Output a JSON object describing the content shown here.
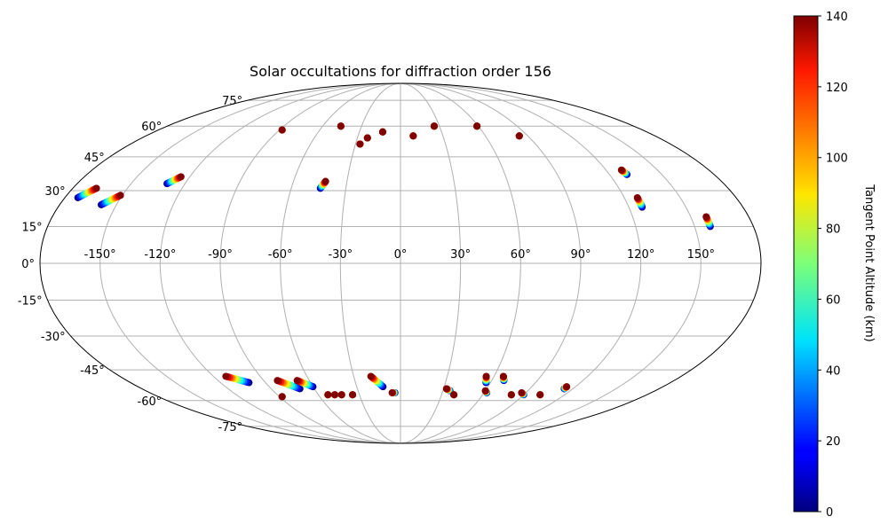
{
  "chart_data": {
    "type": "scatter",
    "projection": "mollweide",
    "title": "Solar occultations for diffraction order 156",
    "grid": true,
    "lon_ticks": [
      "-150°",
      "-120°",
      "-90°",
      "-60°",
      "-30°",
      "0°",
      "30°",
      "60°",
      "90°",
      "120°",
      "150°"
    ],
    "lon_tick_values": [
      -150,
      -120,
      -90,
      -60,
      -30,
      0,
      30,
      60,
      90,
      120,
      150
    ],
    "lat_ticks": [
      "75°",
      "60°",
      "45°",
      "30°",
      "15°",
      "0°",
      "-15°",
      "-30°",
      "-45°",
      "-60°",
      "-75°"
    ],
    "lat_tick_values": [
      75,
      60,
      45,
      30,
      15,
      0,
      -15,
      -30,
      -45,
      -60,
      -75
    ],
    "colorbar": {
      "label": "Tangent Point Altitude (km)",
      "colormap": "jet",
      "range": [
        0,
        140
      ],
      "ticks": [
        "0",
        "20",
        "40",
        "60",
        "80",
        "100",
        "120",
        "140"
      ],
      "tick_values": [
        0,
        20,
        40,
        60,
        80,
        100,
        120,
        140
      ]
    },
    "occultations": [
      {
        "start": [
          -173,
          27
        ],
        "end": [
          -167,
          31
        ]
      },
      {
        "start": [
          -158,
          24
        ],
        "end": [
          -151,
          28
        ]
      },
      {
        "start": [
          -130,
          33
        ],
        "end": [
          -125,
          36
        ]
      },
      {
        "start": [
          -88,
          58
        ],
        "end": [
          -88,
          58
        ]
      },
      {
        "start": [
          -46,
          60
        ],
        "end": [
          -46,
          60
        ]
      },
      {
        "start": [
          -44,
          31
        ],
        "end": [
          -42,
          34
        ]
      },
      {
        "start": [
          -27,
          51
        ],
        "end": [
          -27,
          51
        ]
      },
      {
        "start": [
          -23,
          54
        ],
        "end": [
          -23,
          54
        ]
      },
      {
        "start": [
          -13,
          57
        ],
        "end": [
          -13,
          57
        ]
      },
      {
        "start": [
          9,
          55
        ],
        "end": [
          9,
          55
        ]
      },
      {
        "start": [
          26,
          60
        ],
        "end": [
          26,
          60
        ]
      },
      {
        "start": [
          59,
          60
        ],
        "end": [
          59,
          60
        ]
      },
      {
        "start": [
          84,
          55
        ],
        "end": [
          84,
          55
        ]
      },
      {
        "start": [
          130,
          37
        ],
        "end": [
          129,
          39
        ]
      },
      {
        "start": [
          127,
          23
        ],
        "end": [
          127,
          27
        ]
      },
      {
        "start": [
          158,
          15
        ],
        "end": [
          158,
          19
        ]
      },
      {
        "start": [
          -101,
          -51
        ],
        "end": [
          -112,
          -48
        ]
      },
      {
        "start": [
          -88,
          -58
        ],
        "end": [
          -88,
          -58
        ]
      },
      {
        "start": [
          -70,
          -54
        ],
        "end": [
          -81,
          -50
        ]
      },
      {
        "start": [
          -60,
          -53
        ],
        "end": [
          -68,
          -50
        ]
      },
      {
        "start": [
          -53,
          -57
        ],
        "end": [
          -53,
          -57
        ]
      },
      {
        "start": [
          -48,
          -57
        ],
        "end": [
          -48,
          -57
        ]
      },
      {
        "start": [
          -43,
          -57
        ],
        "end": [
          -43,
          -57
        ]
      },
      {
        "start": [
          -35,
          -57
        ],
        "end": [
          -35,
          -57
        ]
      },
      {
        "start": [
          -12,
          -53
        ],
        "end": [
          -19,
          -48
        ]
      },
      {
        "start": [
          -4,
          -56
        ],
        "end": [
          -6,
          -56
        ]
      },
      {
        "start": [
          35,
          -55
        ],
        "end": [
          32,
          -54
        ]
      },
      {
        "start": [
          39,
          -57
        ],
        "end": [
          39,
          -57
        ]
      },
      {
        "start": [
          57,
          -51
        ],
        "end": [
          55,
          -48
        ]
      },
      {
        "start": [
          62,
          -56
        ],
        "end": [
          60,
          -55
        ]
      },
      {
        "start": [
          68,
          -50
        ],
        "end": [
          66,
          -48
        ]
      },
      {
        "start": [
          81,
          -57
        ],
        "end": [
          81,
          -57
        ]
      },
      {
        "start": [
          90,
          -57
        ],
        "end": [
          87,
          -56
        ]
      },
      {
        "start": [
          102,
          -57
        ],
        "end": [
          102,
          -57
        ]
      },
      {
        "start": [
          114,
          -54
        ],
        "end": [
          114,
          -53
        ]
      }
    ]
  }
}
